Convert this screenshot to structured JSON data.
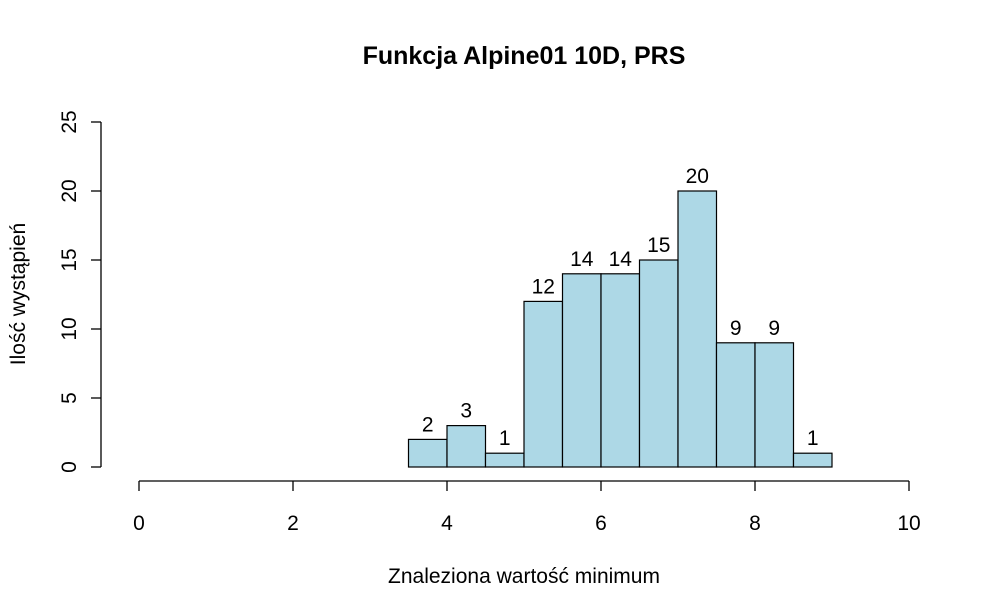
{
  "chart_data": {
    "type": "bar",
    "title": "Funkcja Alpine01 10D, PRS",
    "xlabel": "Znaleziona wartość minimum",
    "ylabel": "Ilość wystąpień",
    "bins": [
      {
        "start": 3.5,
        "end": 4.0,
        "count": 2
      },
      {
        "start": 4.0,
        "end": 4.5,
        "count": 3
      },
      {
        "start": 4.5,
        "end": 5.0,
        "count": 1
      },
      {
        "start": 5.0,
        "end": 5.5,
        "count": 12
      },
      {
        "start": 5.5,
        "end": 6.0,
        "count": 14
      },
      {
        "start": 6.0,
        "end": 6.5,
        "count": 14
      },
      {
        "start": 6.5,
        "end": 7.0,
        "count": 15
      },
      {
        "start": 7.0,
        "end": 7.5,
        "count": 20
      },
      {
        "start": 7.5,
        "end": 8.0,
        "count": 9
      },
      {
        "start": 8.0,
        "end": 8.5,
        "count": 9
      },
      {
        "start": 8.5,
        "end": 9.0,
        "count": 1
      }
    ],
    "xlim": [
      0,
      10
    ],
    "ylim": [
      0,
      25
    ],
    "xticks": [
      0,
      2,
      4,
      6,
      8,
      10
    ],
    "yticks": [
      0,
      5,
      10,
      15,
      20,
      25
    ],
    "grid": false,
    "bar_color": "#add8e6",
    "edge_color": "#000000"
  }
}
